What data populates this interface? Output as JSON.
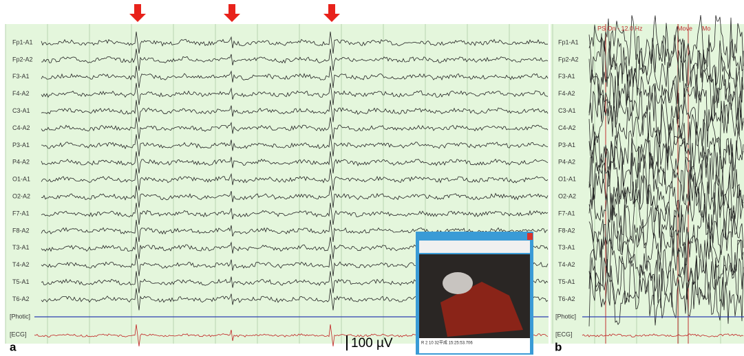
{
  "panel_a": {
    "label": "a",
    "channels": [
      "Fp1-A1",
      "Fp2-A2",
      "F3-A1",
      "F4-A2",
      "C3-A1",
      "C4-A2",
      "P3-A1",
      "P4-A2",
      "O1-A1",
      "O2-A2",
      "F7-A1",
      "F8-A2",
      "T3-A1",
      "T4-A2",
      "T5-A1",
      "T6-A2"
    ],
    "photic": "[Photic]",
    "ecg": "[ECG]",
    "scale": "100 µV"
  },
  "panel_b": {
    "label": "b",
    "channels": [
      "Fp1-A1",
      "Fp2-A2",
      "F3-A1",
      "F4-A2",
      "C3-A1",
      "C4-A2",
      "P3-A1",
      "P4-A2",
      "O1-A1",
      "O2-A2",
      "F7-A1",
      "F8-A2",
      "T3-A1",
      "T4-A2",
      "T5-A1",
      "T6-A2"
    ],
    "photic": "[Photic]",
    "ecg": "[ECG]",
    "annotations": [
      "PS On - 12.0 Hz",
      "Move",
      "Mo"
    ]
  },
  "video_window": {
    "status": "R 2 10 32平成 15:25:53.706"
  }
}
